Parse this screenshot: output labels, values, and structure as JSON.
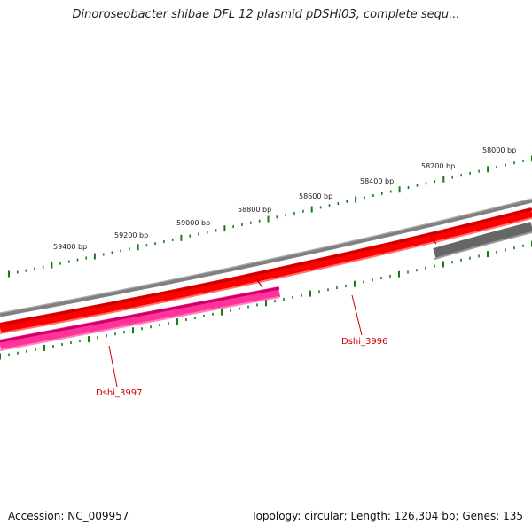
{
  "title": "Dinoroseobacter shibae DFL 12 plasmid pDSHI03, complete sequ...",
  "footer": {
    "accession": "Accession: NC_009957",
    "summary": "Topology: circular; Length: 126,304 bp; Genes: 135"
  },
  "colors": {
    "ticks": "#1a7a1a",
    "backbone": "#808080",
    "forward_feature": "#ff0000",
    "reverse_feature": "#ff3399",
    "other_feature": "#666666",
    "gene_label": "#cc0000"
  },
  "ruler": {
    "labels": [
      "58000 bp",
      "58200 bp",
      "58400 bp",
      "58600 bp",
      "58800 bp",
      "59000 bp",
      "59200 bp",
      "59400 bp"
    ]
  },
  "genes": [
    {
      "label": "Dshi_3996"
    },
    {
      "label": "Dshi_3997"
    }
  ]
}
